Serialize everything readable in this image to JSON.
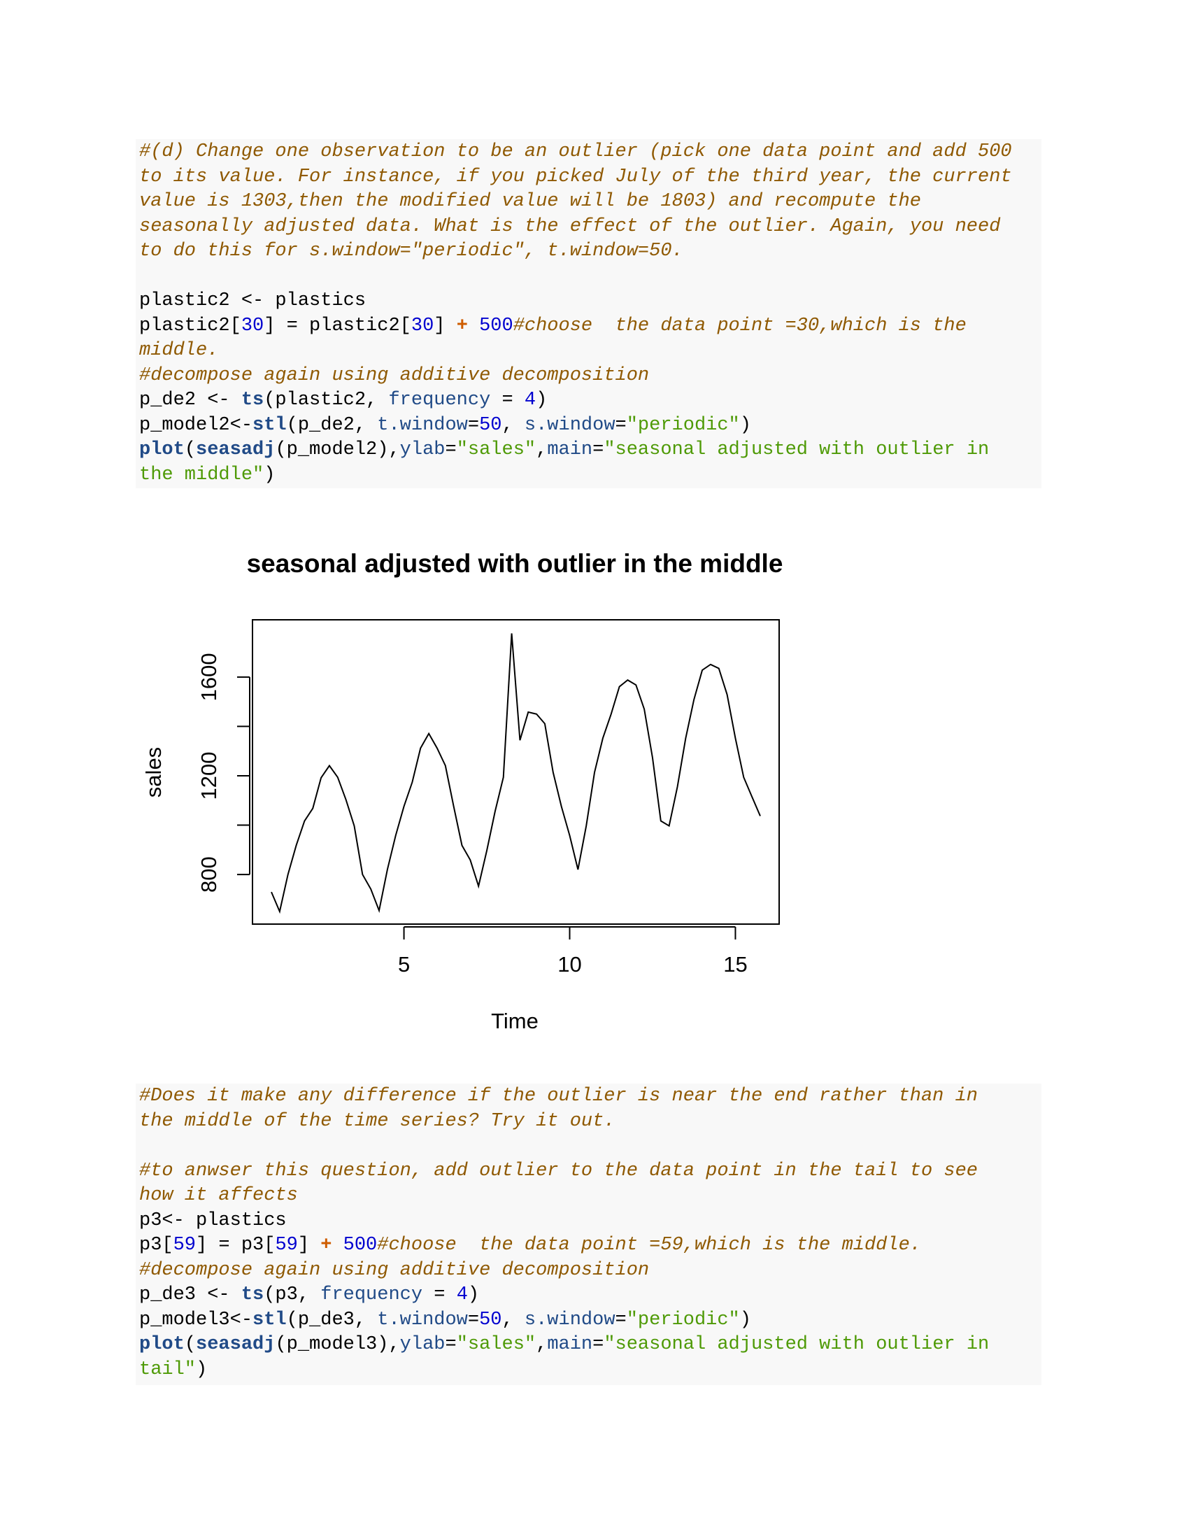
{
  "code_blocks": [
    {
      "lines": [
        [
          {
            "text": "#(d) Change one observation to be an outlier (pick one data point and add 500",
            "style": "comment"
          }
        ],
        [
          {
            "text": "to its value. For instance, if you picked July of the third year, the current",
            "style": "comment"
          }
        ],
        [
          {
            "text": "value is 1303,then the modified value will be 1803) and recompute the",
            "style": "comment"
          }
        ],
        [
          {
            "text": "seasonally adjusted data. What is the effect of the outlier. Again, you need",
            "style": "comment"
          }
        ],
        [
          {
            "text": "to do this for s.window=\"periodic\", t.window=50.",
            "style": "comment"
          }
        ],
        [],
        [
          {
            "text": "plastic2 <- plastics",
            "style": "plain"
          }
        ],
        [
          {
            "text": "plastic2[",
            "style": "plain"
          },
          {
            "text": "30",
            "style": "num"
          },
          {
            "text": "] = plastic2[",
            "style": "plain"
          },
          {
            "text": "30",
            "style": "num"
          },
          {
            "text": "] ",
            "style": "plain"
          },
          {
            "text": "+",
            "style": "op"
          },
          {
            "text": " ",
            "style": "plain"
          },
          {
            "text": "500",
            "style": "num"
          },
          {
            "text": "#choose  the data point =30,which is the",
            "style": "comment"
          }
        ],
        [
          {
            "text": "middle.",
            "style": "comment"
          }
        ],
        [
          {
            "text": "#decompose again using additive decomposition",
            "style": "comment"
          }
        ],
        [
          {
            "text": "p_de2 <- ",
            "style": "plain"
          },
          {
            "text": "ts",
            "style": "kw"
          },
          {
            "text": "(plastic2, ",
            "style": "plain"
          },
          {
            "text": "frequency",
            "style": "arg"
          },
          {
            "text": " = ",
            "style": "plain"
          },
          {
            "text": "4",
            "style": "num"
          },
          {
            "text": ")",
            "style": "plain"
          }
        ],
        [
          {
            "text": "p_model2<-",
            "style": "plain"
          },
          {
            "text": "stl",
            "style": "kw"
          },
          {
            "text": "(p_de2, ",
            "style": "plain"
          },
          {
            "text": "t.window",
            "style": "arg"
          },
          {
            "text": "=",
            "style": "plain"
          },
          {
            "text": "50",
            "style": "num"
          },
          {
            "text": ", ",
            "style": "plain"
          },
          {
            "text": "s.window",
            "style": "arg"
          },
          {
            "text": "=",
            "style": "plain"
          },
          {
            "text": "\"periodic\"",
            "style": "str"
          },
          {
            "text": ")",
            "style": "plain"
          }
        ],
        [
          {
            "text": "plot",
            "style": "kw"
          },
          {
            "text": "(",
            "style": "plain"
          },
          {
            "text": "seasadj",
            "style": "kw"
          },
          {
            "text": "(p_model2),",
            "style": "plain"
          },
          {
            "text": "ylab",
            "style": "arg"
          },
          {
            "text": "=",
            "style": "plain"
          },
          {
            "text": "\"sales\"",
            "style": "str"
          },
          {
            "text": ",",
            "style": "plain"
          },
          {
            "text": "main",
            "style": "arg"
          },
          {
            "text": "=",
            "style": "plain"
          },
          {
            "text": "\"seasonal adjusted with outlier in",
            "style": "str"
          }
        ],
        [
          {
            "text": "the middle\"",
            "style": "str"
          },
          {
            "text": ")",
            "style": "plain"
          }
        ]
      ]
    },
    {
      "lines": [
        [
          {
            "text": "#Does it make any difference if the outlier is near the end rather than in",
            "style": "comment"
          }
        ],
        [
          {
            "text": "the middle of the time series? Try it out.",
            "style": "comment"
          }
        ],
        [],
        [
          {
            "text": "#to anwser this question, add outlier to the data point in the tail to see",
            "style": "comment"
          }
        ],
        [
          {
            "text": "how it affects",
            "style": "comment"
          }
        ],
        [
          {
            "text": "p3<- plastics",
            "style": "plain"
          }
        ],
        [
          {
            "text": "p3[",
            "style": "plain"
          },
          {
            "text": "59",
            "style": "num"
          },
          {
            "text": "] = p3[",
            "style": "plain"
          },
          {
            "text": "59",
            "style": "num"
          },
          {
            "text": "] ",
            "style": "plain"
          },
          {
            "text": "+",
            "style": "op"
          },
          {
            "text": " ",
            "style": "plain"
          },
          {
            "text": "500",
            "style": "num"
          },
          {
            "text": "#choose  the data point =59,which is the middle.",
            "style": "comment"
          }
        ],
        [
          {
            "text": "#decompose again using additive decomposition",
            "style": "comment"
          }
        ],
        [
          {
            "text": "p_de3 <- ",
            "style": "plain"
          },
          {
            "text": "ts",
            "style": "kw"
          },
          {
            "text": "(p3, ",
            "style": "plain"
          },
          {
            "text": "frequency",
            "style": "arg"
          },
          {
            "text": " = ",
            "style": "plain"
          },
          {
            "text": "4",
            "style": "num"
          },
          {
            "text": ")",
            "style": "plain"
          }
        ],
        [
          {
            "text": "p_model3<-",
            "style": "plain"
          },
          {
            "text": "stl",
            "style": "kw"
          },
          {
            "text": "(p_de3, ",
            "style": "plain"
          },
          {
            "text": "t.window",
            "style": "arg"
          },
          {
            "text": "=",
            "style": "plain"
          },
          {
            "text": "50",
            "style": "num"
          },
          {
            "text": ", ",
            "style": "plain"
          },
          {
            "text": "s.window",
            "style": "arg"
          },
          {
            "text": "=",
            "style": "plain"
          },
          {
            "text": "\"periodic\"",
            "style": "str"
          },
          {
            "text": ")",
            "style": "plain"
          }
        ],
        [
          {
            "text": "plot",
            "style": "kw"
          },
          {
            "text": "(",
            "style": "plain"
          },
          {
            "text": "seasadj",
            "style": "kw"
          },
          {
            "text": "(p_model3),",
            "style": "plain"
          },
          {
            "text": "ylab",
            "style": "arg"
          },
          {
            "text": "=",
            "style": "plain"
          },
          {
            "text": "\"sales\"",
            "style": "str"
          },
          {
            "text": ",",
            "style": "plain"
          },
          {
            "text": "main",
            "style": "arg"
          },
          {
            "text": "=",
            "style": "plain"
          },
          {
            "text": "\"seasonal adjusted with outlier in",
            "style": "str"
          }
        ],
        [
          {
            "text": "tail\"",
            "style": "str"
          },
          {
            "text": ")",
            "style": "plain"
          }
        ]
      ]
    }
  ],
  "chart_data": {
    "type": "line",
    "title": "seasonal adjusted with outlier in the middle",
    "x_label": "Time",
    "y_label": "sales",
    "color": "#000000",
    "x": [
      1,
      1.25,
      1.5,
      1.75,
      2,
      2.25,
      2.5,
      2.75,
      3,
      3.25,
      3.5,
      3.75,
      4,
      4.25,
      4.5,
      4.75,
      5,
      5.25,
      5.5,
      5.75,
      6,
      6.25,
      6.5,
      6.75,
      7,
      7.25,
      7.5,
      7.75,
      8,
      8.25,
      8.5,
      8.75,
      9,
      9.25,
      9.5,
      9.75,
      10,
      10.25,
      10.5,
      10.75,
      11,
      11.25,
      11.5,
      11.75,
      12,
      12.25,
      12.5,
      12.75,
      13,
      13.25,
      13.5,
      13.75,
      14,
      14.25,
      14.5,
      14.75,
      15,
      15.25,
      15.5,
      15.75
    ],
    "values": [
      729,
      650,
      800,
      918,
      1017,
      1068,
      1192,
      1241,
      1194,
      1103,
      997,
      800,
      741,
      654,
      820,
      958,
      1076,
      1174,
      1312,
      1371,
      1312,
      1241,
      1076,
      918,
      859,
      753,
      897,
      1056,
      1194,
      1777,
      1344,
      1458,
      1450,
      1411,
      1214,
      1076,
      958,
      820,
      997,
      1214,
      1352,
      1450,
      1561,
      1588,
      1568,
      1470,
      1273,
      1017,
      997,
      1155,
      1352,
      1509,
      1628,
      1651,
      1635,
      1529,
      1352,
      1194,
      1115,
      1037
    ],
    "xlim": [
      0.43,
      16.32
    ],
    "ylim": [
      599,
      1832
    ],
    "xticks": [
      5,
      10,
      15
    ],
    "yticks": [
      800,
      1200,
      1600
    ],
    "yminor_ticks": [
      1000,
      1400
    ]
  }
}
